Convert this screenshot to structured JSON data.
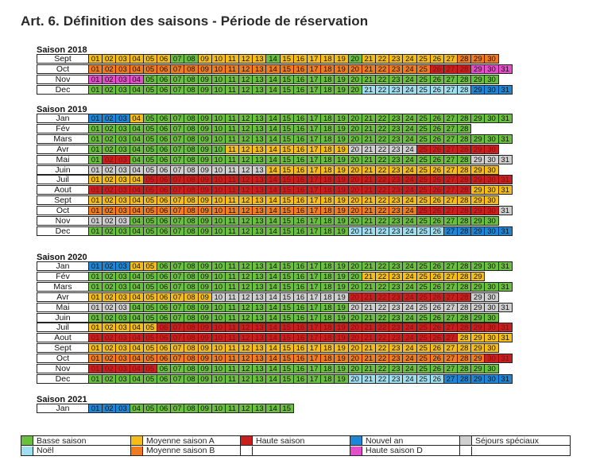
{
  "title": "Art. 6. Définition des saisons - Période de réservation",
  "seasons": [
    {
      "title": "Saison 2018",
      "top": 57,
      "rows": [
        {
          "m": "Sept",
          "d": 30,
          "c": "AAAAAABBAAAAABAAAAABAAAAAAAOOO"
        },
        {
          "m": "Oct",
          "d": 31,
          "c": "OOOOOOOOOOOOOOOOOOOOOOOOOHHHPPP"
        },
        {
          "m": "Nov",
          "d": 30,
          "c": "PPPPBBBBBBBBBBBBBBBBBBBBBBBBBB"
        },
        {
          "m": "Dec",
          "d": 31,
          "c": "BBBBBBBBBBBBBBBBBBBBLLLLLLLLNNN"
        }
      ]
    },
    {
      "title": "Saison 2019",
      "top": 132,
      "rows": [
        {
          "m": "Jan",
          "d": 31,
          "c": "NNNABBBBBBBBBBBBBBBBBBBBBBBBBBB"
        },
        {
          "m": "Fév",
          "d": 28,
          "c": "BBBBBBBBBBBBBBBBBBBBBBBBBBBB"
        },
        {
          "m": "Mars",
          "d": 31,
          "c": "BBBBBBBBBBBBBBBBBBBBBBBBBBBBBBB"
        },
        {
          "m": "Avr",
          "d": 30,
          "c": "BBBBBBBBBBAAAAAAAAASSSSSHHHHHH"
        },
        {
          "m": "Mai",
          "d": 31,
          "c": "BHHBBBBBBBBBBBBBBBBBBBBBBBBBSSS"
        },
        {
          "m": "Juin",
          "d": 30,
          "c": "SSSSSSSSSSSSSAAAAAAAAAAAAAAAAA"
        },
        {
          "m": "Juil",
          "d": 31,
          "c": "AAAAHHHHHHHHHHHHHHHHHHHHHHHHHHH"
        },
        {
          "m": "Aout",
          "d": 31,
          "c": "HHHHHHHHHHHHHHHHHHHHHHHHHHHHAAA"
        },
        {
          "m": "Sept",
          "d": 30,
          "c": "AAAAAAAAAAAAAAAAAAAAAAAAAAAAAA"
        },
        {
          "m": "Oct",
          "d": 31,
          "c": "OOOOOOOOOOOOOOOOOOOOOOOOHHHHHHS"
        },
        {
          "m": "Nov",
          "d": 30,
          "c": "SSSBBBBBBBBBBBBBBBBBBBBBBBBBBB"
        },
        {
          "m": "Dec",
          "d": 31,
          "c": "BBBBBBBBBBBBBBBBBBBLLLLLLLNNNNN"
        }
      ]
    },
    {
      "title": "Saison 2020",
      "top": 318,
      "rows": [
        {
          "m": "Jan",
          "d": 31,
          "c": "NNNAABBBBBBBBBBBBBBBBBBBBBBBBBB"
        },
        {
          "m": "Fév",
          "d": 29,
          "c": "BBBBBBBBBBBBBBBBBBBBAAAAAAAAA"
        },
        {
          "m": "Mars",
          "d": 31,
          "c": "BBBBBBBBBBBBBBBBBBBBBBBBBBBBBBB"
        },
        {
          "m": "Avr",
          "d": 30,
          "c": "AAAAAAAAASSSSSSSSSSHHHHHHHHHSS"
        },
        {
          "m": "Mai",
          "d": 31,
          "c": "SSSBBBBBBBBBBBBBBBBSSSSSSSSSSSS"
        },
        {
          "m": "Juin",
          "d": 30,
          "c": "BBBBBBBBBBBBBBBBBBBBBBBBBBBBBB"
        },
        {
          "m": "Juil",
          "d": 31,
          "c": "AAAAAHHHHHHHHHHHHHHHHHHHHHHHHHH"
        },
        {
          "m": "Aout",
          "d": 31,
          "c": "HHHHHHHHHHHHHHHHHHHHHHHHHHHAAAA"
        },
        {
          "m": "Sept",
          "d": 30,
          "c": "AAAAAAAAAAAAAAAAAAAAAAAAAAAAAA"
        },
        {
          "m": "Oct",
          "d": 31,
          "c": "OOOOOOOOOOOOOOOOOOOOOOOOOOOOOHH"
        },
        {
          "m": "Nov",
          "d": 30,
          "c": "HHHHHBBBBBBBBBBBBBBBBBBBBBBBBB"
        },
        {
          "m": "Dec",
          "d": 31,
          "c": "BBBBBBBBBBBBBBBBBBBLLLLLLLNNNNN"
        }
      ]
    },
    {
      "title": "Saison 2021",
      "top": 497,
      "rows": [
        {
          "m": "Jan",
          "d": 15,
          "c": "NNNBBBBBBBBBBBB"
        }
      ]
    }
  ],
  "legend": [
    {
      "label": "Basse saison",
      "color": "#6abf3f"
    },
    {
      "label": "Moyenne saison A",
      "color": "#f4bd1a"
    },
    {
      "label": "Haute saison",
      "color": "#c81f1f"
    },
    {
      "label": "Nouvel an",
      "color": "#1f86d6"
    },
    {
      "label": "Séjours spéciaux",
      "color": "#cfcfcf"
    },
    {
      "label": "Noël",
      "color": "#9fdff0"
    },
    {
      "label": "Moyenne saison B",
      "color": "#f07c22"
    },
    {
      "label": "",
      "color": "#ffffff"
    },
    {
      "label": "Haute saison D",
      "color": "#e24fc8"
    },
    {
      "label": "",
      "color": "#ffffff"
    }
  ]
}
